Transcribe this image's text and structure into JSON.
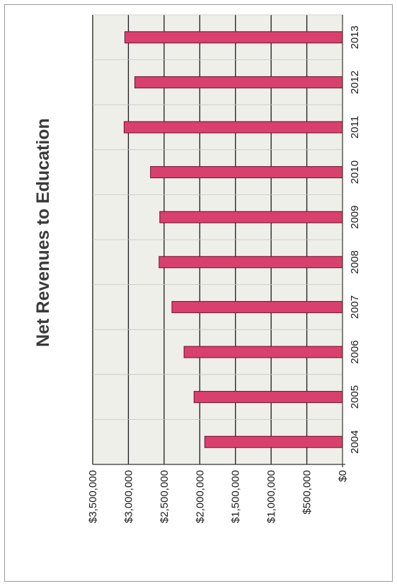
{
  "chart_data": {
    "type": "bar",
    "title": "Net Revenues to Education",
    "categories": [
      "2004",
      "2005",
      "2006",
      "2007",
      "2008",
      "2009",
      "2010",
      "2011",
      "2012",
      "2013"
    ],
    "values": [
      1930000,
      2080000,
      2220000,
      2390000,
      2570000,
      2560000,
      2690000,
      3060000,
      2910000,
      3050000
    ],
    "value_ticks": [
      "$0",
      "$500,000",
      "$1,000,000",
      "$1,500,000",
      "$2,000,000",
      "$2,500,000",
      "$3,000,000",
      "$3,500,000"
    ],
    "ylim": [
      0,
      3500000
    ],
    "grid": true,
    "orientation": "rotated-90-ccw",
    "colors": {
      "bar": "#d9406e",
      "bar_edge": "#6a1030",
      "plot_bg": "#efefea",
      "grid": "#1a1a1a"
    }
  }
}
